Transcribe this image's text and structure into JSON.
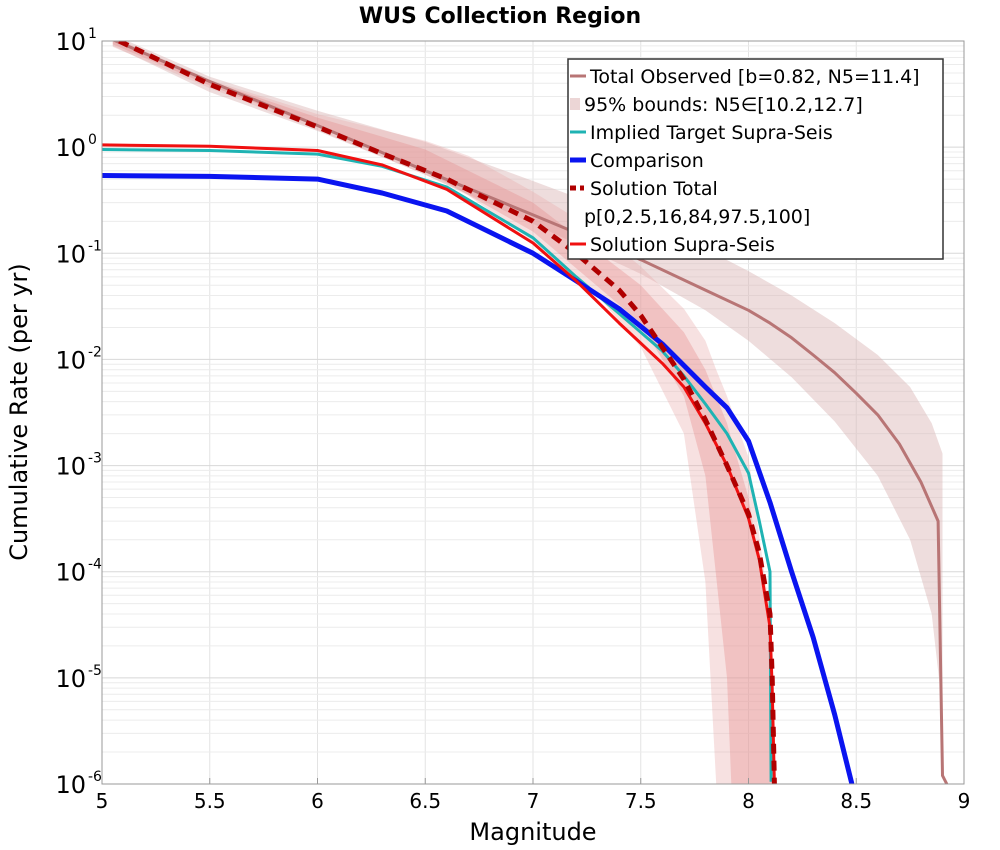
{
  "chart_data": {
    "type": "line",
    "title": "WUS Collection Region",
    "xlabel": "Magnitude",
    "ylabel": "Cumulative Rate (per yr)",
    "xlim": [
      5,
      9
    ],
    "ylim": [
      1e-06,
      10
    ],
    "y_scale": "log",
    "grid": true,
    "legend_position": "top-right",
    "x_ticks": [
      "5",
      "5.5",
      "6",
      "6.5",
      "7",
      "7.5",
      "8",
      "8.5",
      "9"
    ],
    "y_ticks": [
      {
        "base": "10",
        "exp": "1"
      },
      {
        "base": "10",
        "exp": "0"
      },
      {
        "base": "10",
        "exp": "-1"
      },
      {
        "base": "10",
        "exp": "-2"
      },
      {
        "base": "10",
        "exp": "-3"
      },
      {
        "base": "10",
        "exp": "-4"
      },
      {
        "base": "10",
        "exp": "-5"
      },
      {
        "base": "10",
        "exp": "-6"
      }
    ],
    "legend": [
      {
        "label": "Total Observed [b=0.82, N5=11.4]",
        "style": "line",
        "color": "#b87575"
      },
      {
        "label": "95% bounds: N5∈[10.2,12.7]",
        "style": "band",
        "color": "#ecd6d6"
      },
      {
        "label": "Implied Target Supra-Seis",
        "style": "line",
        "color": "#1fb3b3"
      },
      {
        "label": "Comparison",
        "style": "thick",
        "color": "#0a14f0"
      },
      {
        "label": "Solution Total",
        "style": "dashed",
        "color": "#b00000"
      },
      {
        "label": "p[0,2.5,16,84,97.5,100]",
        "style": "none",
        "color": "#e6a8a8"
      },
      {
        "label": "Solution Supra-Seis",
        "style": "line",
        "color": "#f01010"
      }
    ],
    "bands": [
      {
        "name": "95% bounds",
        "color": "#d9b3b3",
        "opacity": 0.45,
        "x": [
          5.05,
          5.5,
          6.0,
          6.5,
          7.0,
          7.5,
          7.8,
          8.0,
          8.2,
          8.4,
          8.6,
          8.75,
          8.85,
          8.9
        ],
        "lower": [
          9.0,
          3.3,
          1.42,
          0.55,
          0.19,
          0.064,
          0.029,
          0.015,
          0.0068,
          0.0026,
          0.0008,
          0.0002,
          4e-05,
          5e-06
        ],
        "upper": [
          11.5,
          4.6,
          2.2,
          1.12,
          0.48,
          0.2,
          0.11,
          0.068,
          0.04,
          0.022,
          0.011,
          0.0055,
          0.0025,
          0.0013
        ]
      },
      {
        "name": "p[0,100]",
        "color": "#e8a8a8",
        "opacity": 0.35,
        "x": [
          5.05,
          5.5,
          6.0,
          6.5,
          6.7,
          7.0,
          7.3,
          7.5,
          7.7,
          7.8,
          7.85,
          7.9,
          8.0,
          8.1,
          8.12
        ],
        "lower": [
          8.8,
          3.6,
          1.45,
          0.55,
          0.35,
          0.13,
          0.04,
          0.013,
          0.002,
          8e-05,
          1e-06,
          1e-06,
          1e-06,
          1e-06,
          1e-06
        ],
        "upper": [
          11.0,
          4.3,
          2.05,
          1.15,
          0.83,
          0.38,
          0.16,
          0.075,
          0.03,
          0.015,
          0.008,
          0.0045,
          0.0012,
          4e-05,
          1e-06
        ]
      },
      {
        "name": "p[2.5,97.5]",
        "color": "#e48a8a",
        "opacity": 0.35,
        "x": [
          5.05,
          5.5,
          6.0,
          6.5,
          7.0,
          7.5,
          7.7,
          7.8,
          7.9,
          7.92,
          8.0,
          8.1,
          8.12
        ],
        "lower": [
          9.3,
          3.8,
          1.55,
          0.6,
          0.16,
          0.022,
          0.0045,
          0.0008,
          1e-05,
          1e-06,
          1e-06,
          1e-06,
          1e-06
        ],
        "upper": [
          10.7,
          4.2,
          1.9,
          0.95,
          0.3,
          0.05,
          0.018,
          0.008,
          0.0025,
          0.0018,
          0.0005,
          3e-05,
          1e-06
        ]
      }
    ],
    "series": [
      {
        "name": "Total Observed [b=0.82, N5=11.4]",
        "color": "#b87575",
        "width": 3,
        "dash": "",
        "x": [
          5.0,
          5.5,
          6.0,
          6.5,
          7.0,
          7.5,
          7.8,
          8.0,
          8.1,
          8.2,
          8.3,
          8.4,
          8.5,
          8.6,
          8.7,
          8.8,
          8.88,
          8.9,
          8.92
        ],
        "y": [
          11.4,
          4.15,
          1.6,
          0.6,
          0.23,
          0.087,
          0.045,
          0.029,
          0.022,
          0.016,
          0.011,
          0.0075,
          0.0048,
          0.003,
          0.0016,
          0.0007,
          0.0003,
          1.2e-06,
          1e-06
        ]
      },
      {
        "name": "Implied Target Supra-Seis",
        "color": "#1fb3b3",
        "width": 3,
        "dash": "",
        "x": [
          5.0,
          5.5,
          6.0,
          6.3,
          6.6,
          7.0,
          7.2,
          7.4,
          7.6,
          7.7,
          7.8,
          7.9,
          8.0,
          8.05,
          8.1,
          8.105
        ],
        "y": [
          0.95,
          0.93,
          0.86,
          0.66,
          0.42,
          0.14,
          0.06,
          0.027,
          0.012,
          0.007,
          0.0038,
          0.002,
          0.00085,
          0.0003,
          0.0001,
          1.05e-06
        ]
      },
      {
        "name": "Comparison",
        "color": "#0a14f0",
        "width": 5,
        "dash": "",
        "x": [
          5.0,
          5.5,
          6.0,
          6.3,
          6.6,
          7.0,
          7.2,
          7.4,
          7.6,
          7.8,
          7.9,
          8.0,
          8.1,
          8.2,
          8.3,
          8.4,
          8.48
        ],
        "y": [
          0.54,
          0.53,
          0.5,
          0.37,
          0.25,
          0.1,
          0.055,
          0.03,
          0.014,
          0.0055,
          0.0035,
          0.0017,
          0.00045,
          0.0001,
          2.4e-05,
          4.5e-06,
          1e-06
        ]
      },
      {
        "name": "Solution Supra-Seis",
        "color": "#f01010",
        "width": 3,
        "dash": "",
        "x": [
          5.0,
          5.5,
          6.0,
          6.3,
          6.6,
          7.0,
          7.2,
          7.4,
          7.6,
          7.7,
          7.8,
          7.9,
          8.0,
          8.05,
          8.1,
          8.11,
          8.12
        ],
        "y": [
          1.05,
          1.02,
          0.93,
          0.68,
          0.4,
          0.125,
          0.055,
          0.022,
          0.0092,
          0.0055,
          0.0025,
          0.001,
          0.00032,
          0.00013,
          3e-05,
          8e-06,
          1e-06
        ]
      },
      {
        "name": "Solution Total",
        "color": "#b00000",
        "width": 5,
        "dash": "10,7",
        "x": [
          5.08,
          5.5,
          6.0,
          6.3,
          6.6,
          7.0,
          7.2,
          7.4,
          7.5,
          7.6,
          7.7,
          7.8,
          7.9,
          8.0,
          8.05,
          8.1,
          8.11,
          8.12
        ],
        "y": [
          10.0,
          3.9,
          1.55,
          0.87,
          0.5,
          0.2,
          0.1,
          0.045,
          0.026,
          0.013,
          0.0065,
          0.0027,
          0.001,
          0.00035,
          0.00015,
          4e-05,
          1e-05,
          1e-06
        ]
      }
    ]
  }
}
